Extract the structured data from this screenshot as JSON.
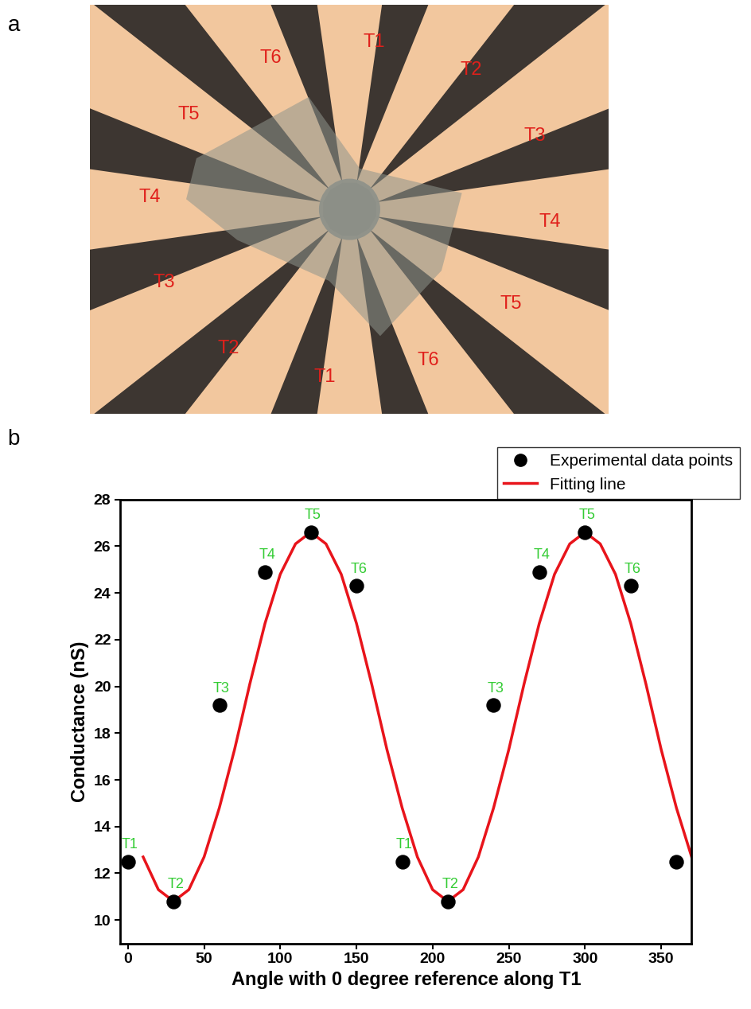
{
  "panel_labels": [
    "a",
    "b"
  ],
  "micrograph": {
    "electrode_labels": [
      "T1",
      "T2",
      "T3",
      "T4",
      "T5",
      "T6",
      "T1",
      "T2",
      "T3",
      "T4",
      "T5",
      "T6"
    ]
  },
  "chart_data": {
    "type": "scatter",
    "xlabel": "Angle with 0 degree reference along T1",
    "ylabel": "Conductance (nS)",
    "xlim": [
      -5,
      370
    ],
    "xticks": [
      0,
      50,
      100,
      150,
      200,
      250,
      300,
      350
    ],
    "ylim": [
      9,
      28
    ],
    "yticks": [
      10,
      12,
      14,
      16,
      18,
      20,
      22,
      24,
      26,
      28
    ],
    "legend": "upper right",
    "series": [
      {
        "name": "Experimental data points",
        "type": "scatter",
        "color": "#000000",
        "marker": "o",
        "x": [
          0,
          30,
          60,
          90,
          120,
          150,
          180,
          210,
          240,
          270,
          300,
          330,
          360
        ],
        "values": [
          12.5,
          10.8,
          19.2,
          24.9,
          26.6,
          24.3,
          12.5,
          10.8,
          19.2,
          24.9,
          26.6,
          24.3,
          12.5
        ],
        "point_labels": [
          "T1",
          "T2",
          "T3",
          "T4",
          "T5",
          "T6",
          "T1",
          "T2",
          "T3",
          "T4",
          "T5",
          "T6",
          null
        ]
      },
      {
        "name": "Fitting line",
        "type": "line",
        "color": "#e8141b",
        "line_style": "solid",
        "x": [
          10,
          20,
          30,
          40,
          50,
          60,
          70,
          80,
          90,
          100,
          110,
          120,
          130,
          140,
          150,
          160,
          170,
          180,
          190,
          200,
          210,
          220,
          230,
          240,
          250,
          260,
          270,
          280,
          290,
          300,
          310,
          320,
          330,
          340,
          350,
          360,
          370
        ],
        "values": [
          12.7,
          11.3,
          10.8,
          11.3,
          12.7,
          14.8,
          17.3,
          20.1,
          22.7,
          24.8,
          26.1,
          26.6,
          26.1,
          24.8,
          22.7,
          20.1,
          17.3,
          14.8,
          12.7,
          11.3,
          10.8,
          11.3,
          12.7,
          14.8,
          17.3,
          20.1,
          22.7,
          24.8,
          26.1,
          26.6,
          26.1,
          24.8,
          22.7,
          20.1,
          17.3,
          14.8,
          12.7
        ]
      }
    ]
  }
}
